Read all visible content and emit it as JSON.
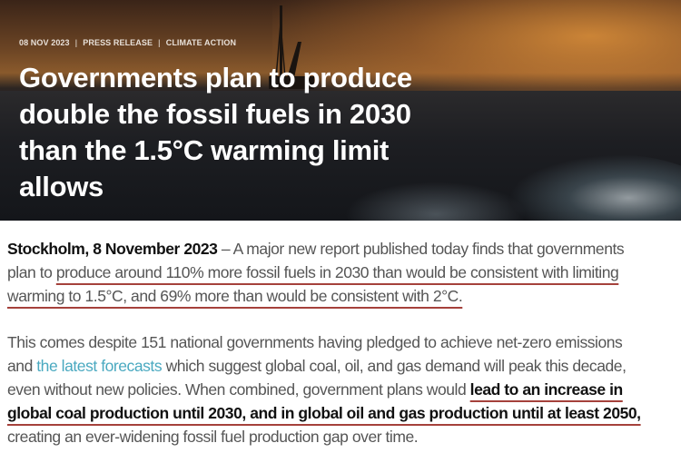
{
  "hero": {
    "meta": [
      "08 NOV 2023",
      "PRESS RELEASE",
      "CLIMATE ACTION"
    ],
    "title_lines": [
      "Governments plan to produce",
      "double the fossil fuels in 2030",
      "than the 1.5°C warming limit",
      "allows"
    ]
  },
  "paragraph1": {
    "dateline": "Stockholm, 8 November 2023",
    "line1_rest": " – A major new report published today finds that governments",
    "line2_plain": "plan to ",
    "line2_underlined": "produce around 110% more fossil fuels in 2030 than would be consistent with limiting",
    "line3_underlined": "warming to 1.5°C, and 69% more than would be consistent with 2°C."
  },
  "paragraph2": {
    "line1": "This comes despite 151 national governments having pledged to achieve net-zero emissions",
    "line2_pre": "and ",
    "line2_link": "the latest forecasts",
    "line2_post": " which suggest global coal, oil, and gas demand will peak this decade,",
    "line3_plain": "even without new policies. When combined, government plans would ",
    "line3_bold": "lead to an increase in",
    "line4_bold": "global coal production until 2030, and in global oil and gas production until at least 2050,",
    "line5": "creating an ever-widening fossil fuel production gap over time."
  },
  "colors": {
    "link": "#4aa9c0",
    "underline": "#a5413b"
  }
}
